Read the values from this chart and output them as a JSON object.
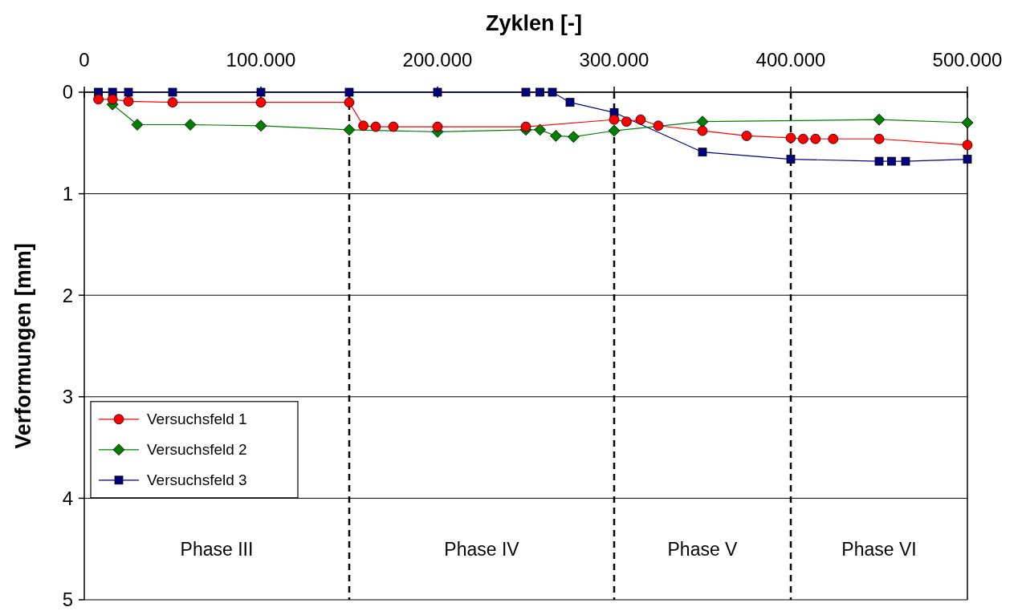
{
  "chart_data": {
    "type": "line",
    "xlabel": "Zyklen [-]",
    "ylabel": "Verformungen [mm]",
    "xlim": [
      0,
      500000
    ],
    "xticks": [
      0,
      {
        "value": 100000,
        "label": "100.000"
      },
      {
        "value": 200000,
        "label": "200.000"
      },
      {
        "value": 300000,
        "label": "300.000"
      },
      {
        "value": 400000,
        "label": "400.000"
      },
      {
        "value": 500000,
        "label": "500.000"
      }
    ],
    "ylim": [
      5,
      0
    ],
    "yticks": [
      0,
      1,
      2,
      3,
      4,
      5
    ],
    "grid": "y",
    "legend": "bottom left",
    "line_style": "solid",
    "series": [
      {
        "name": "Versuchsfeld 1",
        "color": "#ff0000",
        "marker": "circle",
        "x": [
          8000,
          16000,
          25000,
          50000,
          100000,
          150000,
          158000,
          165000,
          175000,
          200000,
          250000,
          300000,
          307000,
          315000,
          325000,
          350000,
          375000,
          400000,
          407000,
          414000,
          424000,
          450000,
          500000
        ],
        "values": [
          0.07,
          0.07,
          0.09,
          0.1,
          0.1,
          0.1,
          0.33,
          0.34,
          0.34,
          0.34,
          0.34,
          0.27,
          0.29,
          0.27,
          0.33,
          0.38,
          0.43,
          0.45,
          0.46,
          0.46,
          0.46,
          0.46,
          0.52
        ]
      },
      {
        "name": "Versuchsfeld 2",
        "color": "#008000",
        "marker": "diamond",
        "x": [
          16000,
          30000,
          60000,
          100000,
          150000,
          200000,
          250000,
          258000,
          267000,
          277000,
          300000,
          350000,
          450000,
          500000
        ],
        "values": [
          0.12,
          0.32,
          0.32,
          0.33,
          0.37,
          0.39,
          0.37,
          0.37,
          0.43,
          0.44,
          0.38,
          0.29,
          0.27,
          0.3
        ]
      },
      {
        "name": "Versuchsfeld 3",
        "color": "#000080",
        "marker": "square",
        "x": [
          8000,
          16000,
          25000,
          50000,
          100000,
          150000,
          200000,
          250000,
          258000,
          265000,
          275000,
          300000,
          350000,
          400000,
          450000,
          457000,
          465000,
          500000
        ],
        "values": [
          0,
          0,
          0,
          0,
          0,
          0,
          0,
          0,
          0,
          0,
          0.1,
          0.2,
          0.59,
          0.66,
          0.68,
          0.68,
          0.68,
          0.66
        ]
      }
    ],
    "ref_lines": [
      {
        "axis": "x",
        "value": 150000,
        "line_style": "dashed",
        "color": "#000000"
      },
      {
        "axis": "x",
        "value": 300000,
        "line_style": "dashed",
        "color": "#000000"
      },
      {
        "axis": "x",
        "value": 400000,
        "line_style": "dashed",
        "color": "#000000"
      }
    ],
    "annotations": [
      "Phase III",
      "Phase IV",
      "Phase V",
      "Phase VI"
    ]
  }
}
